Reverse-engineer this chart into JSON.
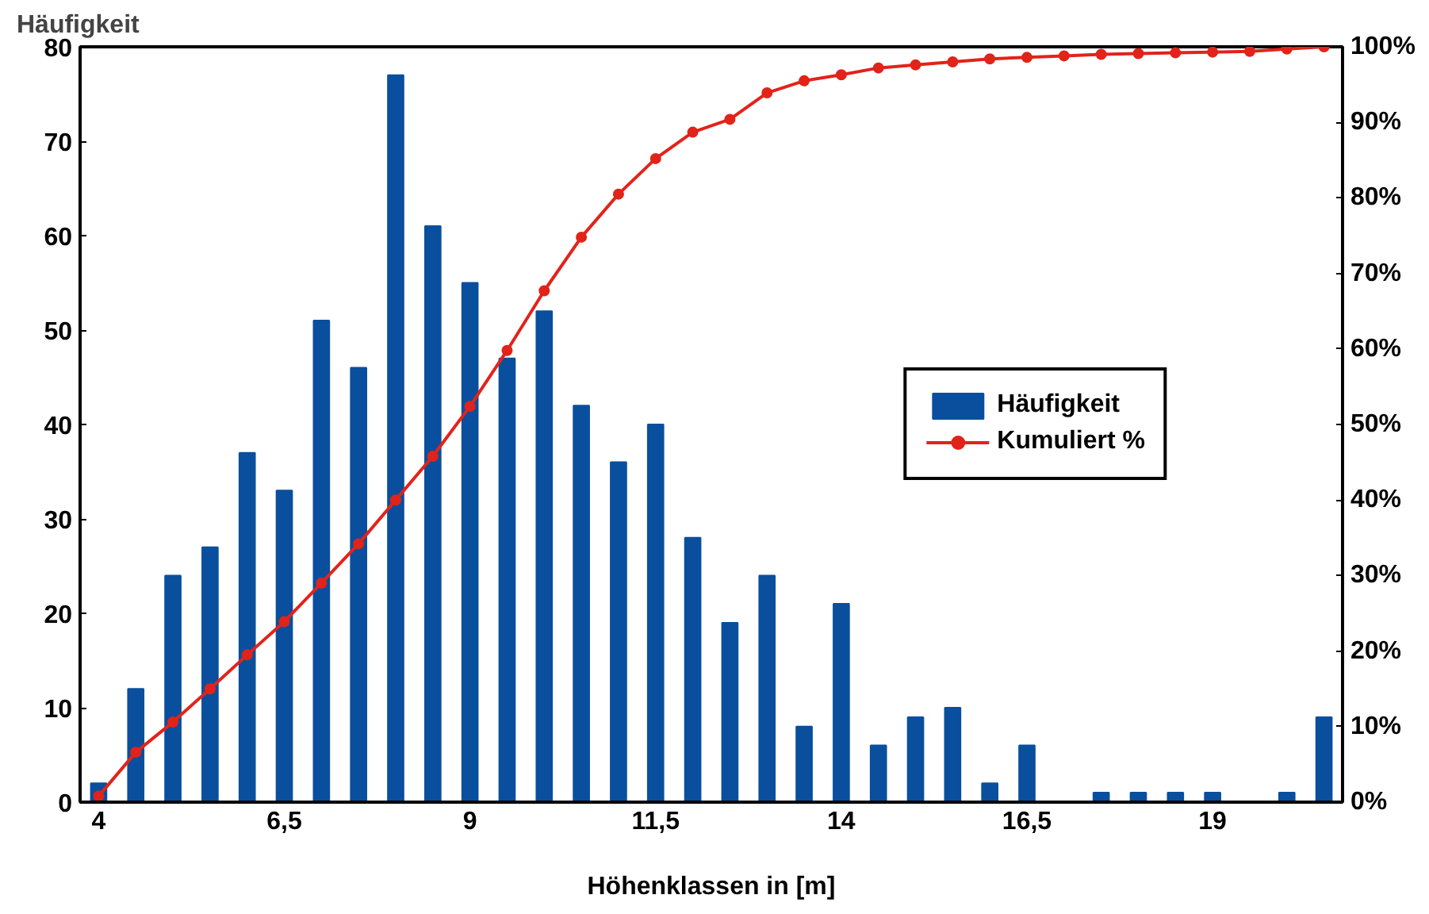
{
  "chart_data": {
    "type": "bar",
    "xlabel": "Höhenklassen in [m]",
    "ylabel": "Häufigkeit",
    "categories": [
      "4",
      null,
      null,
      null,
      null,
      "6,5",
      null,
      null,
      null,
      null,
      "9",
      null,
      null,
      null,
      null,
      "11,5",
      null,
      null,
      null,
      null,
      "14",
      null,
      null,
      null,
      null,
      "16,5",
      null,
      null,
      null,
      null,
      "19",
      null,
      null,
      null
    ],
    "series": [
      {
        "name": "Häufigkeit",
        "color": "#0a4f9e",
        "values": [
          2,
          12,
          24,
          27,
          37,
          33,
          51,
          46,
          77,
          61,
          55,
          47,
          52,
          42,
          36,
          40,
          28,
          19,
          24,
          8,
          21,
          6,
          9,
          10,
          2,
          6,
          0,
          1,
          1,
          1,
          1,
          0,
          1,
          9
        ]
      },
      {
        "name": "Kumuliert %",
        "type": "line",
        "axis": "y2",
        "color": "#e2231a",
        "marker": "circle",
        "values": [
          0.8,
          6.6,
          10.6,
          15,
          19.5,
          23.9,
          29,
          34.2,
          40,
          45.8,
          52.4,
          59.8,
          67.7,
          74.8,
          80.5,
          85.2,
          88.7,
          90.4,
          93.9,
          95.5,
          96.3,
          97.2,
          97.6,
          98,
          98.4,
          98.6,
          98.8,
          99,
          99.1,
          99.2,
          99.3,
          99.4,
          99.7,
          100
        ]
      }
    ],
    "ylim": [
      0,
      80
    ],
    "yticks": [
      0,
      10,
      20,
      30,
      40,
      50,
      60,
      70,
      80
    ],
    "y2lim": [
      0,
      100
    ],
    "y2ticks": [
      {
        "value": 0,
        "label": "0%"
      },
      {
        "value": 10,
        "label": "10%"
      },
      {
        "value": 20,
        "label": "20%"
      },
      {
        "value": 30,
        "label": "30%"
      },
      {
        "value": 40,
        "label": "40%"
      },
      {
        "value": 50,
        "label": "50%"
      },
      {
        "value": 60,
        "label": "60%"
      },
      {
        "value": 70,
        "label": "70%"
      },
      {
        "value": 80,
        "label": "80%"
      },
      {
        "value": 90,
        "label": "90%"
      },
      {
        "value": 100,
        "label": "100%"
      }
    ],
    "grid": false,
    "legend": "right"
  }
}
